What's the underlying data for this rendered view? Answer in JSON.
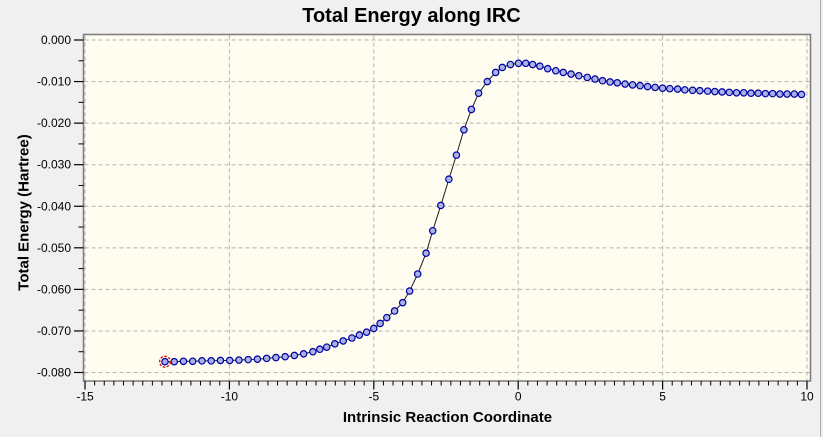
{
  "header": {
    "title": "Total Energy along IRC"
  },
  "chart_data": {
    "type": "line",
    "title": "Total Energy along IRC",
    "xlabel": "Intrinsic Reaction Coordinate",
    "ylabel": "Total Energy (Hartree)",
    "xlim": [
      -15,
      10
    ],
    "ylim": [
      -0.08,
      0.0
    ],
    "x_ticks": [
      -15,
      -10,
      -5,
      0,
      5,
      10
    ],
    "y_ticks": [
      0.0,
      -0.01,
      -0.02,
      -0.03,
      -0.04,
      -0.05,
      -0.06,
      -0.07,
      -0.08
    ],
    "y_tick_decimals": 3,
    "x_minor_per_major": 15,
    "y_minor_per_major": 2,
    "grid": "major-dashed-both",
    "legend_position": "none",
    "series": [
      {
        "name": "Total Energy",
        "marker": "circle",
        "selected_point_index": 0,
        "points": [
          [
            -12.23,
            -0.0774
          ],
          [
            -11.91,
            -0.0774
          ],
          [
            -11.59,
            -0.0773
          ],
          [
            -11.27,
            -0.0773
          ],
          [
            -10.95,
            -0.0772
          ],
          [
            -10.63,
            -0.0772
          ],
          [
            -10.31,
            -0.0771
          ],
          [
            -9.99,
            -0.0771
          ],
          [
            -9.67,
            -0.077
          ],
          [
            -9.35,
            -0.0769
          ],
          [
            -9.03,
            -0.0768
          ],
          [
            -8.71,
            -0.0766
          ],
          [
            -8.39,
            -0.0764
          ],
          [
            -8.07,
            -0.0762
          ],
          [
            -7.75,
            -0.0759
          ],
          [
            -7.43,
            -0.0755
          ],
          [
            -7.11,
            -0.075
          ],
          [
            -6.87,
            -0.0744
          ],
          [
            -6.63,
            -0.0739
          ],
          [
            -6.35,
            -0.0731
          ],
          [
            -6.06,
            -0.0724
          ],
          [
            -5.76,
            -0.0717
          ],
          [
            -5.5,
            -0.071
          ],
          [
            -5.25,
            -0.0703
          ],
          [
            -5.0,
            -0.0694
          ],
          [
            -4.78,
            -0.0682
          ],
          [
            -4.55,
            -0.0668
          ],
          [
            -4.28,
            -0.0652
          ],
          [
            -4.0,
            -0.0632
          ],
          [
            -3.76,
            -0.0604
          ],
          [
            -3.48,
            -0.0563
          ],
          [
            -3.19,
            -0.0513
          ],
          [
            -2.96,
            -0.0459
          ],
          [
            -2.68,
            -0.0398
          ],
          [
            -2.4,
            -0.0335
          ],
          [
            -2.14,
            -0.0277
          ],
          [
            -1.88,
            -0.0216
          ],
          [
            -1.62,
            -0.0167
          ],
          [
            -1.37,
            -0.0128
          ],
          [
            -1.07,
            -0.01
          ],
          [
            -0.78,
            -0.0078
          ],
          [
            -0.55,
            -0.0066
          ],
          [
            -0.27,
            -0.0059
          ],
          [
            0.01,
            -0.0056
          ],
          [
            0.26,
            -0.0056
          ],
          [
            0.5,
            -0.0059
          ],
          [
            0.75,
            -0.0063
          ],
          [
            1.02,
            -0.0069
          ],
          [
            1.3,
            -0.0074
          ],
          [
            1.56,
            -0.0078
          ],
          [
            1.83,
            -0.0082
          ],
          [
            2.1,
            -0.0086
          ],
          [
            2.39,
            -0.009
          ],
          [
            2.66,
            -0.0094
          ],
          [
            2.92,
            -0.0098
          ],
          [
            3.18,
            -0.0101
          ],
          [
            3.43,
            -0.0103
          ],
          [
            3.7,
            -0.0106
          ],
          [
            3.96,
            -0.0108
          ],
          [
            4.22,
            -0.011
          ],
          [
            4.48,
            -0.0112
          ],
          [
            4.74,
            -0.0114
          ],
          [
            5.0,
            -0.0116
          ],
          [
            5.25,
            -0.0117
          ],
          [
            5.52,
            -0.0118
          ],
          [
            5.77,
            -0.012
          ],
          [
            6.04,
            -0.0121
          ],
          [
            6.29,
            -0.0122
          ],
          [
            6.56,
            -0.0123
          ],
          [
            6.81,
            -0.0124
          ],
          [
            7.06,
            -0.0125
          ],
          [
            7.31,
            -0.0126
          ],
          [
            7.56,
            -0.0127
          ],
          [
            7.81,
            -0.0127
          ],
          [
            8.06,
            -0.0128
          ],
          [
            8.31,
            -0.0128
          ],
          [
            8.56,
            -0.0129
          ],
          [
            8.81,
            -0.0129
          ],
          [
            9.06,
            -0.013
          ],
          [
            9.31,
            -0.013
          ],
          [
            9.56,
            -0.013
          ],
          [
            9.81,
            -0.0131
          ]
        ]
      }
    ]
  },
  "colors": {
    "window_background": "#f0f0f0",
    "plot_background": "#fffdf0",
    "grid_line": "#b4b4b4",
    "frame": "#7b7b7b",
    "curve_line": "#1c1c1c",
    "marker_fill": "#a8b2e6",
    "marker_stroke": "#0000a0",
    "selected_marker": "#e00000",
    "tick": "#000000",
    "text": "#000000"
  }
}
